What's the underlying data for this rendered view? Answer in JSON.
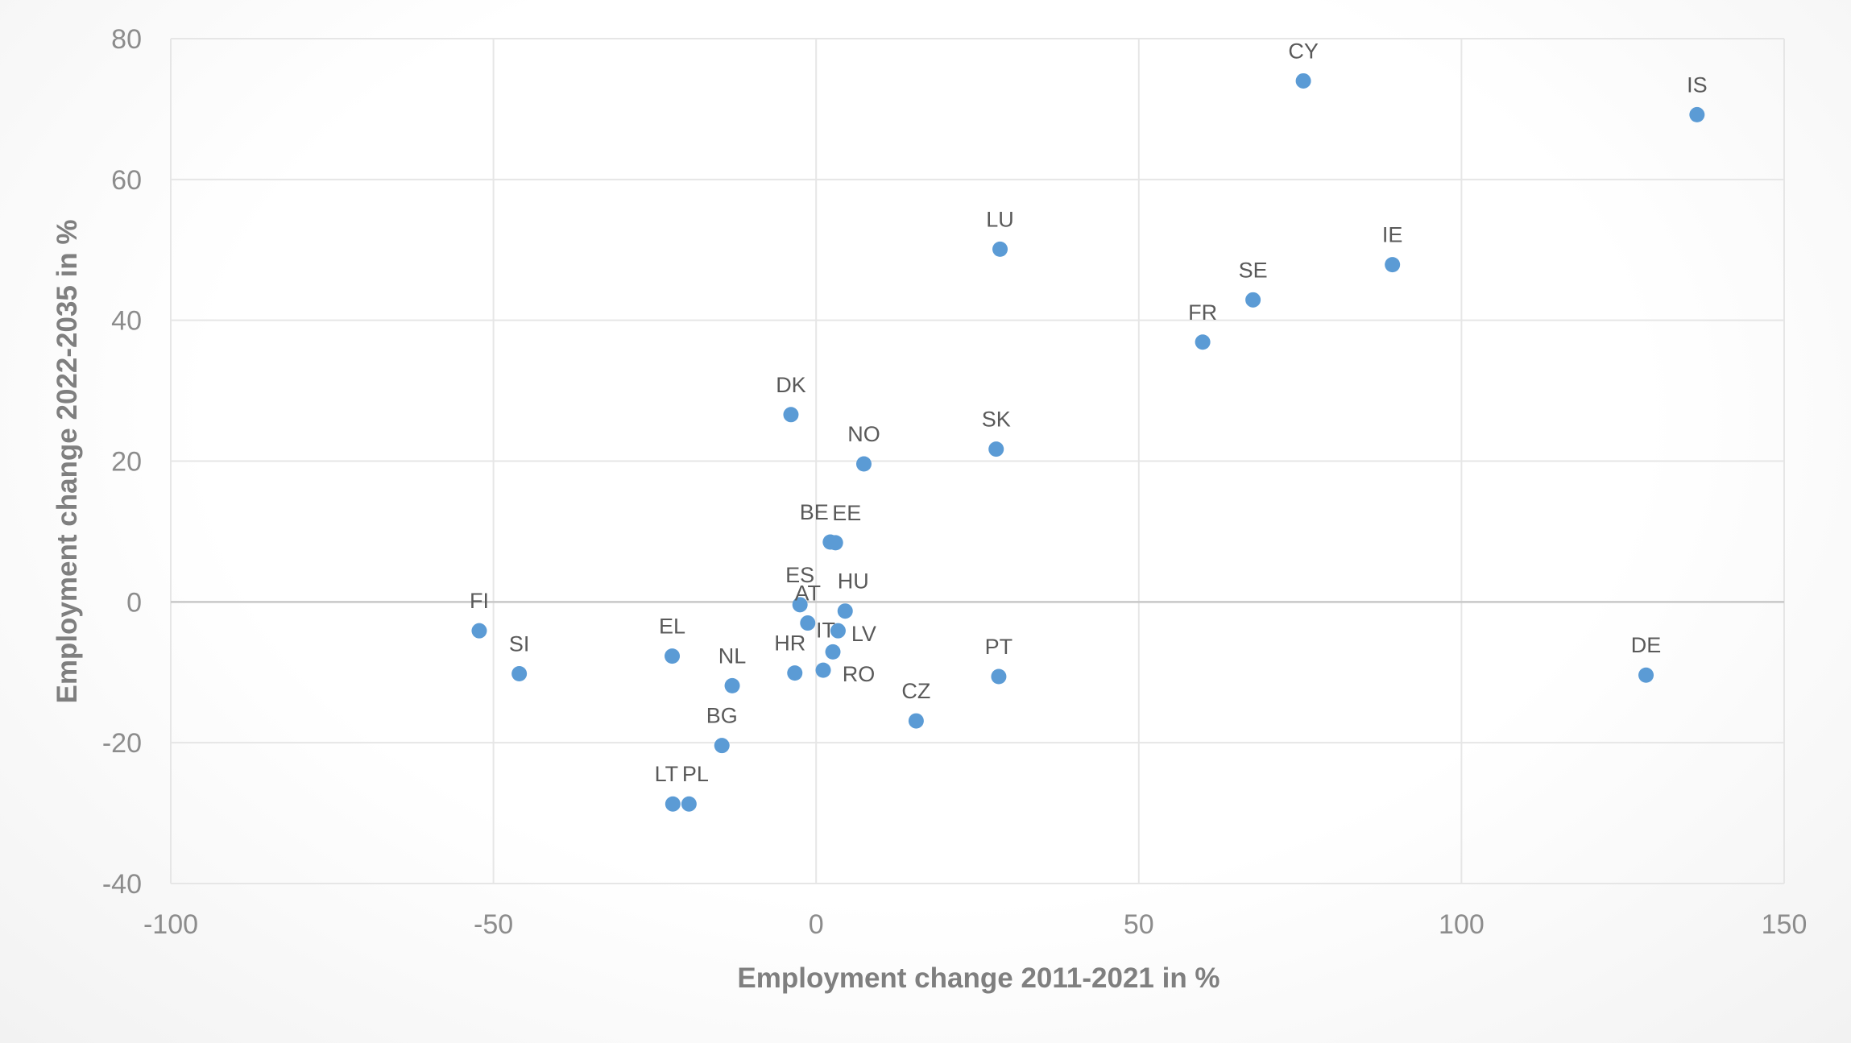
{
  "chart_data": {
    "type": "scatter",
    "xlabel": "Employment change 2011-2021 in %",
    "ylabel": "Employment change 2022-2035 in %",
    "xlim": [
      -100,
      150
    ],
    "ylim": [
      -40,
      80
    ],
    "x_ticks": [
      -100,
      -50,
      0,
      50,
      100,
      150
    ],
    "y_ticks": [
      -40,
      -20,
      0,
      20,
      40,
      60,
      80
    ],
    "grid": true,
    "point_color": "#5b9bd5",
    "points": [
      {
        "label": "CY",
        "x": 75.5,
        "y": 74
      },
      {
        "label": "IS",
        "x": 136.5,
        "y": 69.2
      },
      {
        "label": "LU",
        "x": 28.5,
        "y": 50.1
      },
      {
        "label": "IE",
        "x": 89.3,
        "y": 47.9
      },
      {
        "label": "SE",
        "x": 67.7,
        "y": 42.9
      },
      {
        "label": "FR",
        "x": 59.9,
        "y": 36.9
      },
      {
        "label": "DK",
        "x": -3.9,
        "y": 26.6
      },
      {
        "label": "SK",
        "x": 27.9,
        "y": 21.7
      },
      {
        "label": "NO",
        "x": 7.4,
        "y": 19.6
      },
      {
        "label": "BE",
        "x": 2.2,
        "y": 8.5
      },
      {
        "label": "EE",
        "x": 3.0,
        "y": 8.4
      },
      {
        "label": "ES",
        "x": -2.5,
        "y": -0.4
      },
      {
        "label": "HU",
        "x": 4.5,
        "y": -1.3
      },
      {
        "label": "AT",
        "x": -1.3,
        "y": -3.0
      },
      {
        "label": "LV",
        "x": 3.4,
        "y": -4.1
      },
      {
        "label": "FI",
        "x": -52.2,
        "y": -4.1
      },
      {
        "label": "IT",
        "x": 2.6,
        "y": -7.1
      },
      {
        "label": "EL",
        "x": -22.3,
        "y": -7.7
      },
      {
        "label": "RO",
        "x": 1.1,
        "y": -9.7
      },
      {
        "label": "SI",
        "x": -46.0,
        "y": -10.2
      },
      {
        "label": "HR",
        "x": -3.3,
        "y": -10.1
      },
      {
        "label": "PT",
        "x": 28.3,
        "y": -10.6
      },
      {
        "label": "DE",
        "x": 128.6,
        "y": -10.4
      },
      {
        "label": "NL",
        "x": -13.0,
        "y": -11.9
      },
      {
        "label": "CZ",
        "x": 15.5,
        "y": -16.9
      },
      {
        "label": "BG",
        "x": -14.6,
        "y": -20.4
      },
      {
        "label": "LT",
        "x": -22.2,
        "y": -28.7
      },
      {
        "label": "PL",
        "x": -19.7,
        "y": -28.7
      }
    ]
  }
}
